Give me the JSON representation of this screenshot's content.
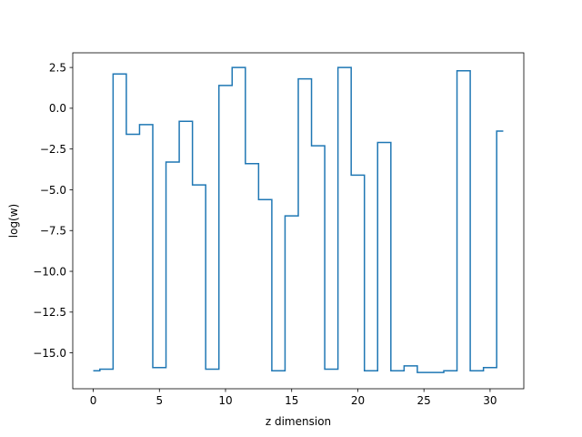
{
  "chart_data": {
    "type": "line",
    "drawstyle": "steps-mid",
    "title": "",
    "xlabel": "z dimension",
    "ylabel": "log(w)",
    "xlim": [
      -1.55,
      32.55
    ],
    "ylim": [
      -17.2,
      3.4
    ],
    "grid": false,
    "legend": "none",
    "x": [
      0,
      1,
      2,
      3,
      4,
      5,
      6,
      7,
      8,
      9,
      10,
      11,
      12,
      13,
      14,
      15,
      16,
      17,
      18,
      19,
      20,
      21,
      22,
      23,
      24,
      25,
      26,
      27,
      28,
      29,
      30,
      31
    ],
    "series": [
      {
        "name": "",
        "color": "#1f77b4",
        "values": [
          -16.1,
          -16.0,
          2.1,
          -1.6,
          -1.0,
          -15.9,
          -3.3,
          -0.8,
          -4.7,
          -16.0,
          1.4,
          2.5,
          -3.4,
          -5.6,
          -16.1,
          -6.6,
          1.8,
          -2.3,
          -16.0,
          2.5,
          -4.1,
          -16.1,
          -2.1,
          -16.1,
          -15.8,
          -16.2,
          -16.2,
          -16.1,
          2.3,
          -16.1,
          -15.9,
          -1.4
        ]
      }
    ],
    "xticks": [
      0,
      5,
      10,
      15,
      20,
      25,
      30
    ],
    "xtick_labels": [
      "0",
      "5",
      "10",
      "15",
      "20",
      "25",
      "30"
    ],
    "yticks": [
      2.5,
      0.0,
      -2.5,
      -5.0,
      -7.5,
      -10.0,
      -12.5,
      -15.0
    ],
    "ytick_labels": [
      "2.5",
      "0.0",
      "−2.5",
      "−5.0",
      "−7.5",
      "−10.0",
      "−12.5",
      "−15.0"
    ]
  }
}
